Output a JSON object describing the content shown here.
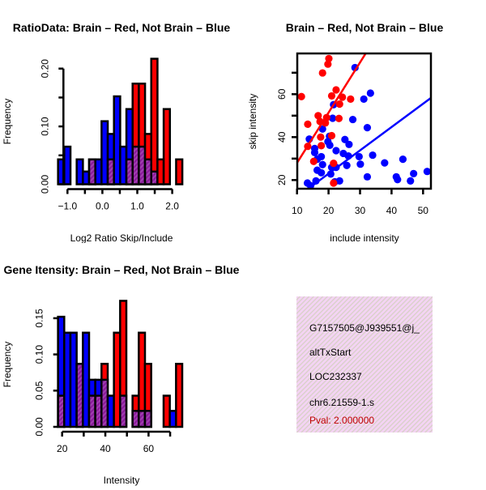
{
  "colors": {
    "brain": "#ff0000",
    "not_brain": "#0000ff",
    "overlap": "#8b1a9b",
    "info_bg": "#f4d4f4"
  },
  "chart_data": [
    {
      "type": "bar",
      "subtype": "overlaid histogram",
      "title": "RatioData: Brain – Red, Not Brain – Blue",
      "xlabel": "Log2 Ratio Skip/Include",
      "ylabel": "Frequency",
      "xticks": [
        -1.0,
        -0.5,
        0.0,
        0.5,
        1.0,
        1.5,
        2.0
      ],
      "xtick_labels": [
        "-1.0",
        "0.0",
        "1.0",
        "2.0"
      ],
      "xtick_label_values": [
        -1.0,
        0.0,
        1.0,
        2.0
      ],
      "yticks": [
        0,
        0.05,
        0.1,
        0.15,
        0.2
      ],
      "ytick_labels": [
        "0.00",
        "0.10",
        "0.20"
      ],
      "ytick_label_values": [
        0,
        0.1,
        0.2
      ],
      "ylim": [
        0,
        0.2
      ],
      "bin_start": -1.27,
      "bin_width": 0.178,
      "series": [
        {
          "name": "Not Brain",
          "color": "blue",
          "values": [
            0.043,
            0.065,
            0,
            0.043,
            0.022,
            0.043,
            0.043,
            0.109,
            0.087,
            0.152,
            0.065,
            0.13,
            0.065,
            0.065,
            0.043,
            0.022,
            0,
            0,
            0,
            0
          ]
        },
        {
          "name": "Brain",
          "color": "red",
          "values": [
            0,
            0,
            0,
            0,
            0,
            0.043,
            0,
            0,
            0.043,
            0,
            0,
            0.043,
            0.174,
            0.174,
            0.087,
            0.217,
            0.043,
            0.13,
            0,
            0.043
          ]
        }
      ]
    },
    {
      "type": "scatter",
      "title": "Brain – Red, Not Brain – Blue",
      "xlabel": "include intensity",
      "ylabel": "skip intensity",
      "xlim": [
        10,
        52.5
      ],
      "ylim": [
        16,
        79
      ],
      "xticks": [
        10,
        20,
        30,
        40,
        50
      ],
      "xtick_labels": [
        "10",
        "20",
        "30",
        "40",
        "50"
      ],
      "yticks": [
        20,
        30,
        40,
        50,
        60,
        70
      ],
      "ytick_labels": [
        "20",
        "40",
        "60"
      ],
      "ytick_label_values": [
        20,
        40,
        60
      ],
      "series": [
        {
          "name": "Brain",
          "color": "red",
          "fit": {
            "slope": 2.34,
            "intercept": 4.6
          },
          "points": [
            [
              20.1,
              76.6
            ],
            [
              19.8,
              74.0
            ],
            [
              18.1,
              69.9
            ],
            [
              11.4,
              58.9
            ],
            [
              22.4,
              62.0
            ],
            [
              21.0,
              59.2
            ],
            [
              24.4,
              58.6
            ],
            [
              27.0,
              57.7
            ],
            [
              23.5,
              55.4
            ],
            [
              16.7,
              50.0
            ],
            [
              19.4,
              49.1
            ],
            [
              23.3,
              48.7
            ],
            [
              13.4,
              46.0
            ],
            [
              17.3,
              47.3
            ],
            [
              19.0,
              46.6
            ],
            [
              21.0,
              40.7
            ],
            [
              17.5,
              40.0
            ],
            [
              13.4,
              35.7
            ],
            [
              17.7,
              36.0
            ],
            [
              15.3,
              28.7
            ],
            [
              21.6,
              27.8
            ],
            [
              21.6,
              18.6
            ]
          ]
        },
        {
          "name": "Not Brain",
          "color": "blue",
          "fit": {
            "slope": 1.086,
            "intercept": 1.25
          },
          "points": [
            [
              28.4,
              72.4
            ],
            [
              33.3,
              60.5
            ],
            [
              31.2,
              57.7
            ],
            [
              21.6,
              55.1
            ],
            [
              21.3,
              48.8
            ],
            [
              27.7,
              48.2
            ],
            [
              32.3,
              44.4
            ],
            [
              18.1,
              43.8
            ],
            [
              13.9,
              39.1
            ],
            [
              20.3,
              40.4
            ],
            [
              19.8,
              37.9
            ],
            [
              25.2,
              38.9
            ],
            [
              20.4,
              36.2
            ],
            [
              26.5,
              36.6
            ],
            [
              15.6,
              34.7
            ],
            [
              15.6,
              32.8
            ],
            [
              22.4,
              33.7
            ],
            [
              24.7,
              32.4
            ],
            [
              26.3,
              31.2
            ],
            [
              17.7,
              30.9
            ],
            [
              16.4,
              29.7
            ],
            [
              29.7,
              30.9
            ],
            [
              34.0,
              31.6
            ],
            [
              37.8,
              28.0
            ],
            [
              43.6,
              29.7
            ],
            [
              18.1,
              27.2
            ],
            [
              25.8,
              26.8
            ],
            [
              30.1,
              27.4
            ],
            [
              21.0,
              25.9
            ],
            [
              16.4,
              24.6
            ],
            [
              22.4,
              25.9
            ],
            [
              17.7,
              23.4
            ],
            [
              20.7,
              22.8
            ],
            [
              32.3,
              21.5
            ],
            [
              41.5,
              21.5
            ],
            [
              41.9,
              20.2
            ],
            [
              47.0,
              23.0
            ],
            [
              46.0,
              19.6
            ],
            [
              51.3,
              24.0
            ],
            [
              13.3,
              18.6
            ],
            [
              16.0,
              19.6
            ],
            [
              22.0,
              19.2
            ],
            [
              23.5,
              19.6
            ],
            [
              14.3,
              17.4
            ]
          ]
        }
      ]
    },
    {
      "type": "bar",
      "subtype": "overlaid histogram",
      "title": "Gene Itensity: Brain – Red, Not Brain – Blue",
      "xlabel": "Intensity",
      "ylabel": "Frequency",
      "xticks": [
        20,
        30,
        40,
        50,
        60,
        70
      ],
      "xtick_labels": [
        "20",
        "40",
        "60"
      ],
      "xtick_label_values": [
        20,
        40,
        60
      ],
      "yticks": [
        0,
        0.05,
        0.1,
        0.15
      ],
      "ytick_labels": [
        "0.00",
        "0.05",
        "0.10",
        "0.15"
      ],
      "ytick_label_values": [
        0,
        0.05,
        0.1,
        0.15
      ],
      "ylim": [
        0,
        0.174
      ],
      "bin_start": 18.1,
      "bin_width": 2.875,
      "series": [
        {
          "name": "Not Brain",
          "color": "blue",
          "values": [
            0.152,
            0.13,
            0.13,
            0.087,
            0.13,
            0.065,
            0.065,
            0.065,
            0.043,
            0,
            0.043,
            0,
            0.022,
            0.022,
            0.022,
            0,
            0,
            0,
            0.022,
            0
          ]
        },
        {
          "name": "Brain",
          "color": "red",
          "values": [
            0.043,
            0,
            0,
            0.087,
            0,
            0.043,
            0.043,
            0.087,
            0,
            0.13,
            0.174,
            0,
            0.043,
            0.13,
            0.087,
            0,
            0,
            0.043,
            0,
            0.087
          ]
        }
      ]
    }
  ],
  "info_panel": {
    "lines": [
      "G7157505@J939551@j_",
      "altTxStart",
      "LOC232337",
      "chr6.21559-1.s"
    ],
    "pval": "Pval: 2.000000"
  }
}
